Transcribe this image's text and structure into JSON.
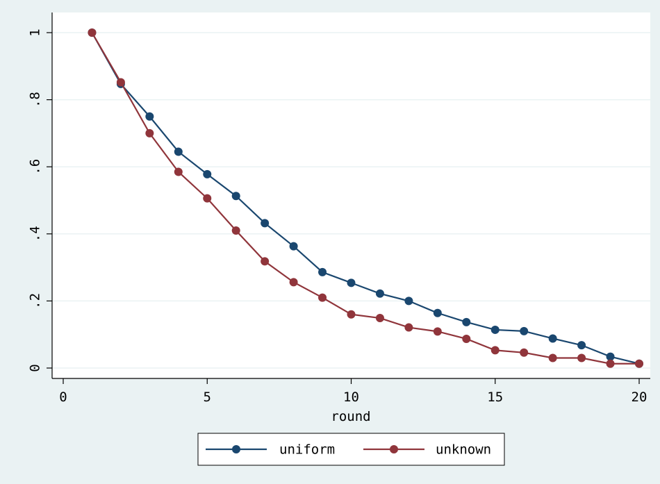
{
  "chart_data": {
    "type": "line",
    "xlabel": "round",
    "ylabel": "",
    "xlim": [
      0,
      20
    ],
    "ylim": [
      0,
      1
    ],
    "x_ticks": [
      {
        "value": 0,
        "label": "0"
      },
      {
        "value": 5,
        "label": "5"
      },
      {
        "value": 10,
        "label": "10"
      },
      {
        "value": 15,
        "label": "15"
      },
      {
        "value": 20,
        "label": "20"
      }
    ],
    "y_ticks": [
      {
        "value": 0,
        "label": "0"
      },
      {
        "value": 0.2,
        "label": ".2"
      },
      {
        "value": 0.4,
        "label": ".4"
      },
      {
        "value": 0.6,
        "label": ".6"
      },
      {
        "value": 0.8,
        "label": ".8"
      },
      {
        "value": 1,
        "label": "1"
      }
    ],
    "grid": "horizontal",
    "legend_position": "bottom",
    "x": [
      1,
      2,
      3,
      4,
      5,
      6,
      7,
      8,
      9,
      10,
      11,
      12,
      13,
      14,
      15,
      16,
      17,
      18,
      19,
      20
    ],
    "series": [
      {
        "name": "uniform",
        "color": "#1a476f",
        "values": [
          1.0,
          0.847,
          0.75,
          0.645,
          0.578,
          0.513,
          0.432,
          0.363,
          0.286,
          0.254,
          0.222,
          0.2,
          0.164,
          0.137,
          0.114,
          0.11,
          0.088,
          0.068,
          0.034,
          0.013
        ]
      },
      {
        "name": "unknown",
        "color": "#90353b",
        "values": [
          1.0,
          0.852,
          0.7,
          0.585,
          0.506,
          0.41,
          0.318,
          0.256,
          0.21,
          0.16,
          0.149,
          0.121,
          0.109,
          0.087,
          0.053,
          0.046,
          0.03,
          0.03,
          0.013,
          0.013
        ]
      }
    ]
  },
  "colors": {
    "page_background": "#eaf2f3",
    "plot_background": "#ffffff",
    "grid": "#eaf2f3"
  }
}
